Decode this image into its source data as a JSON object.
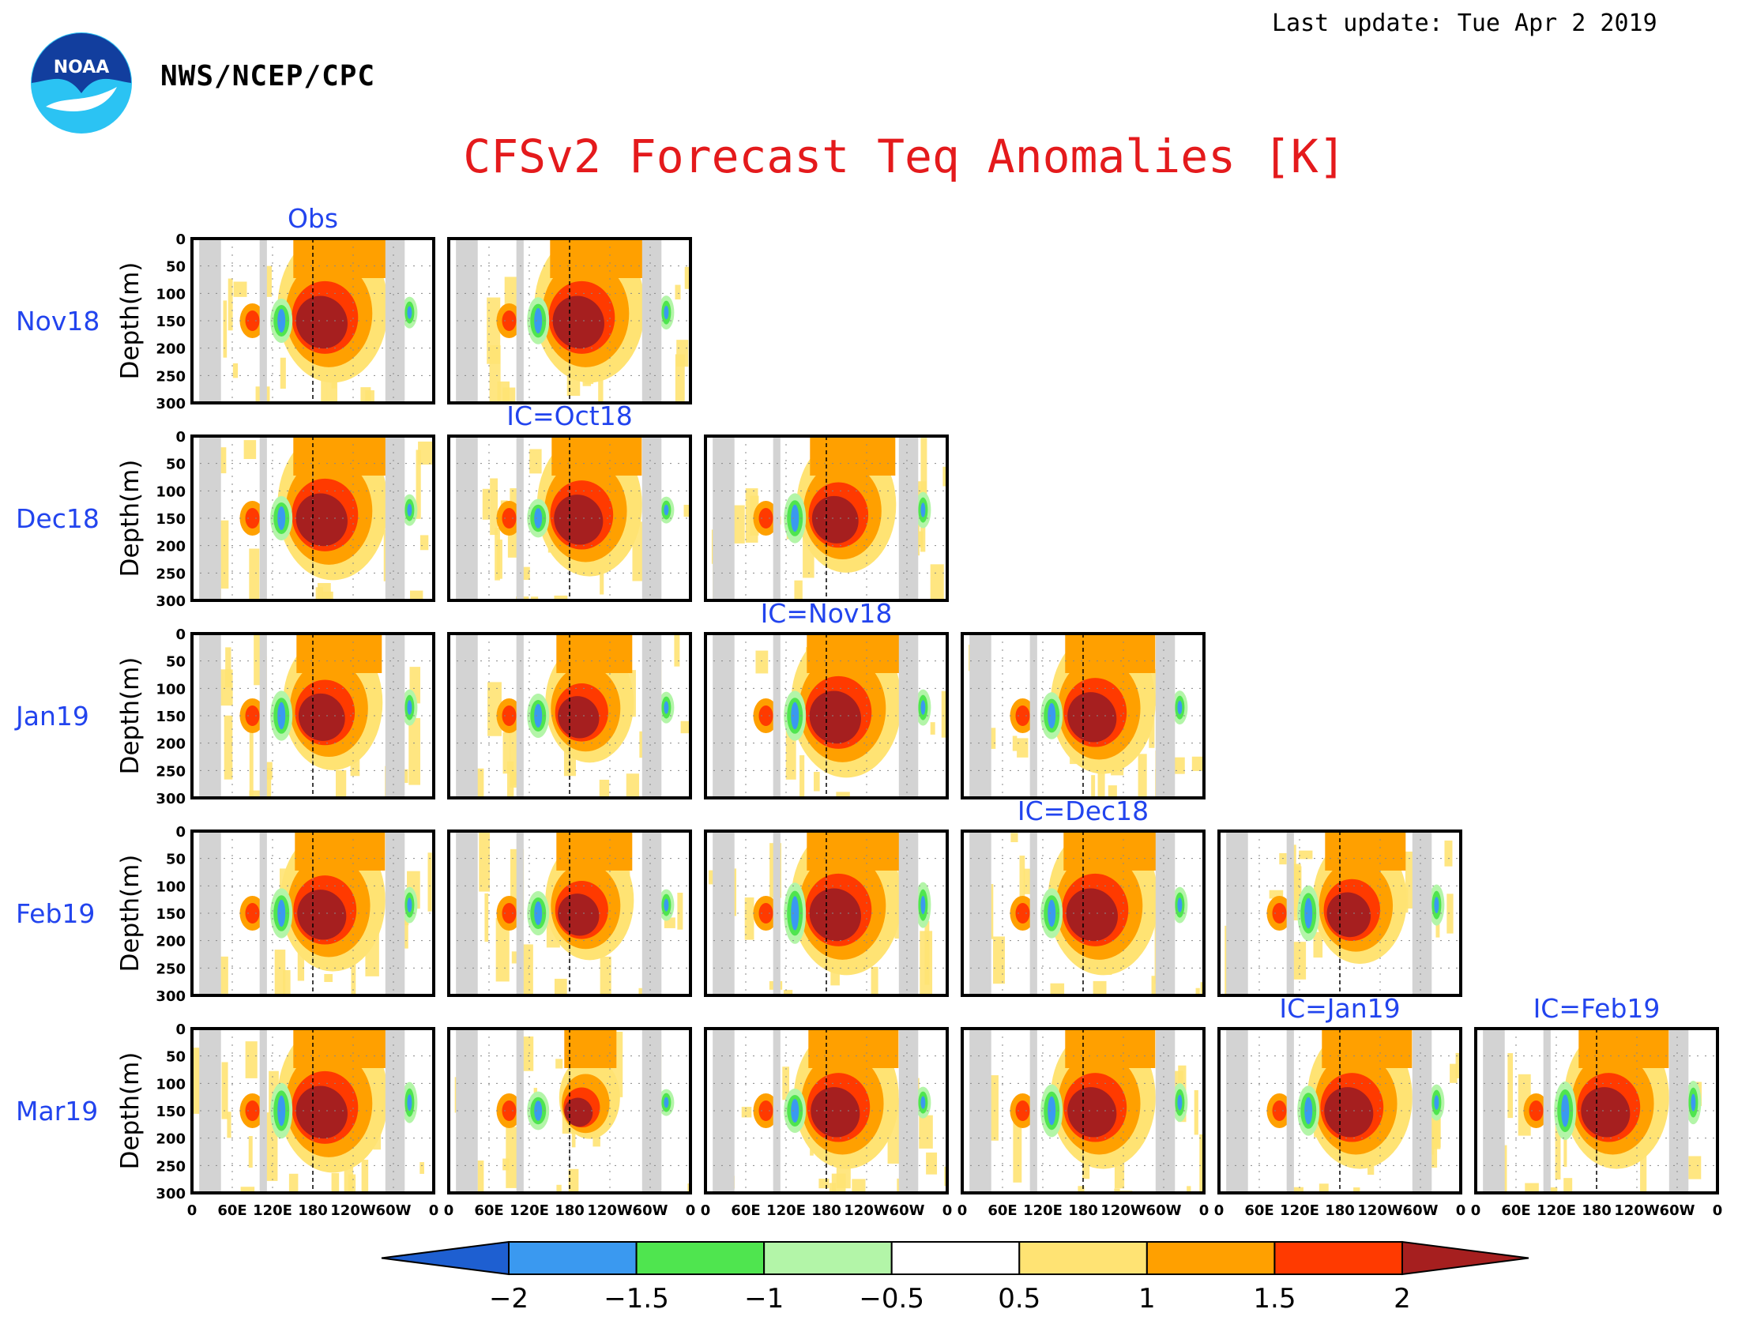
{
  "header": {
    "agency": "NWS/NCEP/CPC",
    "last_update": "Last update: Tue Apr 2 2019",
    "title": "CFSv2 Forecast Teq Anomalies [K]",
    "logo_text": "NOAA"
  },
  "chart_data": {
    "type": "heatmap",
    "title": "CFSv2 Forecast Teq Anomalies [K]",
    "ylabel": "Depth(m)",
    "ylim": [
      300,
      0
    ],
    "y_ticks": [
      "0",
      "50",
      "100",
      "150",
      "200",
      "250",
      "300"
    ],
    "x_ticks": [
      "0",
      "60E",
      "120E",
      "180",
      "120W",
      "60W",
      "0"
    ],
    "row_labels": [
      "Nov18",
      "Dec18",
      "Jan19",
      "Feb19",
      "Mar19"
    ],
    "column_titles": [
      "Obs",
      "IC=Oct18",
      "IC=Nov18",
      "IC=Dec18",
      "IC=Jan19",
      "IC=Feb19"
    ],
    "colorbar": {
      "levels": [
        "−2",
        "−1.5",
        "−1",
        "−0.5",
        "0.5",
        "1",
        "1.5",
        "2"
      ],
      "colors": [
        "#1e5fd1",
        "#3a99f0",
        "#4fe54f",
        "#b3f5a8",
        "#ffffff",
        "#ffe373",
        "#ffa000",
        "#ff3a00",
        "#a61f1f"
      ]
    },
    "panels": [
      {
        "row": "Nov18",
        "column": "Obs",
        "warm": 1.0,
        "cool": 0.5
      },
      {
        "row": "Nov18",
        "column": "IC=Oct18",
        "warm": 1.0,
        "cool": 0.55
      },
      {
        "row": "Dec18",
        "column": "Obs",
        "warm": 1.0,
        "cool": 0.5
      },
      {
        "row": "Dec18",
        "column": "IC=Oct18",
        "warm": 0.95,
        "cool": 0.4
      },
      {
        "row": "Dec18",
        "column": "IC=Nov18",
        "warm": 0.9,
        "cool": 0.6
      },
      {
        "row": "Jan19",
        "column": "Obs",
        "warm": 0.9,
        "cool": 0.6
      },
      {
        "row": "Jan19",
        "column": "IC=Oct18",
        "warm": 0.8,
        "cool": 0.5
      },
      {
        "row": "Jan19",
        "column": "IC=Nov18",
        "warm": 1.0,
        "cool": 0.6
      },
      {
        "row": "Jan19",
        "column": "IC=Dec18",
        "warm": 0.95,
        "cool": 0.55
      },
      {
        "row": "Feb19",
        "column": "Obs",
        "warm": 0.95,
        "cool": 0.6
      },
      {
        "row": "Feb19",
        "column": "IC=Oct18",
        "warm": 0.8,
        "cool": 0.5
      },
      {
        "row": "Feb19",
        "column": "IC=Nov18",
        "warm": 1.0,
        "cool": 0.8
      },
      {
        "row": "Feb19",
        "column": "IC=Dec18",
        "warm": 1.0,
        "cool": 0.6
      },
      {
        "row": "Feb19",
        "column": "IC=Jan19",
        "warm": 0.85,
        "cool": 0.7
      },
      {
        "row": "Mar19",
        "column": "Obs",
        "warm": 1.0,
        "cool": 0.7
      },
      {
        "row": "Mar19",
        "column": "IC=Oct18",
        "warm": 0.55,
        "cool": 0.4
      },
      {
        "row": "Mar19",
        "column": "IC=Nov18",
        "warm": 0.95,
        "cool": 0.5
      },
      {
        "row": "Mar19",
        "column": "IC=Dec18",
        "warm": 0.95,
        "cool": 0.65
      },
      {
        "row": "Mar19",
        "column": "IC=Jan19",
        "warm": 0.95,
        "cool": 0.6
      },
      {
        "row": "Mar19",
        "column": "IC=Feb19",
        "warm": 0.95,
        "cool": 0.75
      }
    ]
  }
}
